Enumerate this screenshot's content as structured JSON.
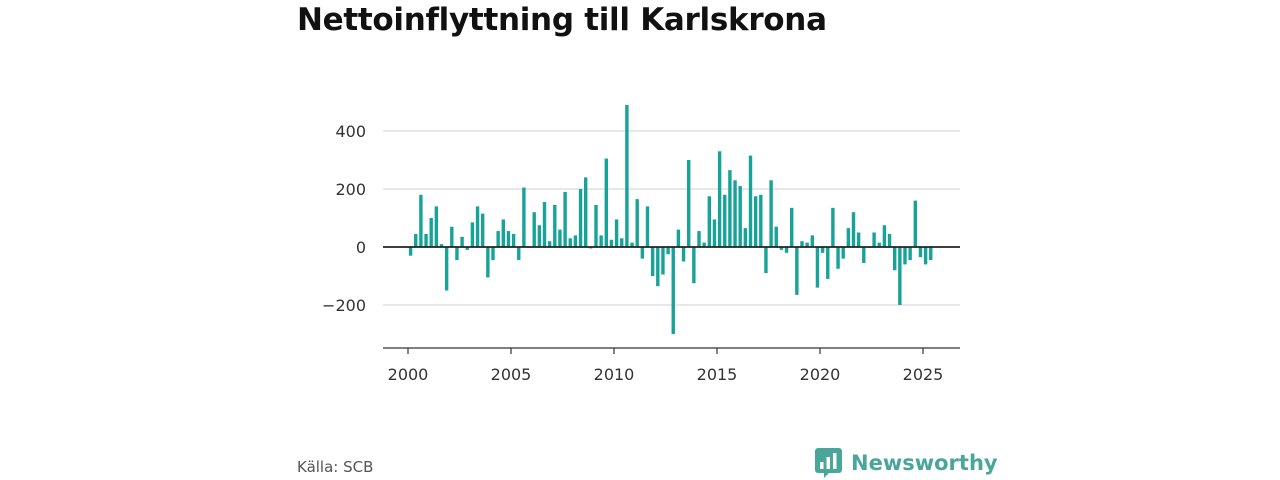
{
  "title": "Nettoinflyttning till Karlskrona",
  "source": "Källa: SCB",
  "brand": "Newsworthy",
  "colors": {
    "bar": "#17a398",
    "grid": "#d9d9d9",
    "axis": "#333333",
    "brand": "#4aa69a"
  },
  "chart_data": {
    "type": "bar",
    "title": "Nettoinflyttning till Karlskrona",
    "xlabel": "",
    "ylabel": "",
    "x_unit": "year (quarterly bars)",
    "xlim": [
      1999.6,
      2027.7
    ],
    "ylim": [
      -350,
      520
    ],
    "yticks": [
      400,
      200,
      0,
      -200
    ],
    "ytick_labels": [
      "400",
      "200",
      "0",
      "−200"
    ],
    "xticks": [
      2000,
      2005,
      2010,
      2015,
      2020,
      2025
    ],
    "xtick_labels": [
      "2000",
      "2005",
      "2010",
      "2015",
      "2020",
      "2025"
    ],
    "grid": true,
    "legend": "none",
    "start": "2000-Q1",
    "values": [
      -30,
      45,
      180,
      45,
      100,
      140,
      10,
      -150,
      70,
      -45,
      35,
      -10,
      85,
      140,
      115,
      -105,
      -45,
      55,
      95,
      55,
      45,
      -45,
      205,
      0,
      120,
      75,
      155,
      20,
      145,
      60,
      190,
      30,
      40,
      200,
      240,
      -5,
      145,
      40,
      305,
      25,
      95,
      30,
      490,
      15,
      165,
      -40,
      140,
      -100,
      -135,
      -95,
      -25,
      -300,
      60,
      -50,
      300,
      -125,
      55,
      15,
      175,
      95,
      330,
      180,
      265,
      230,
      210,
      65,
      315,
      175,
      180,
      -90,
      230,
      70,
      -10,
      -20,
      135,
      -165,
      20,
      15,
      40,
      -140,
      -20,
      -110,
      135,
      -75,
      -40,
      65,
      120,
      50,
      -55,
      0,
      50,
      15,
      75,
      45,
      -80,
      -200,
      -60,
      -45,
      160,
      -35,
      -60,
      -45
    ]
  }
}
